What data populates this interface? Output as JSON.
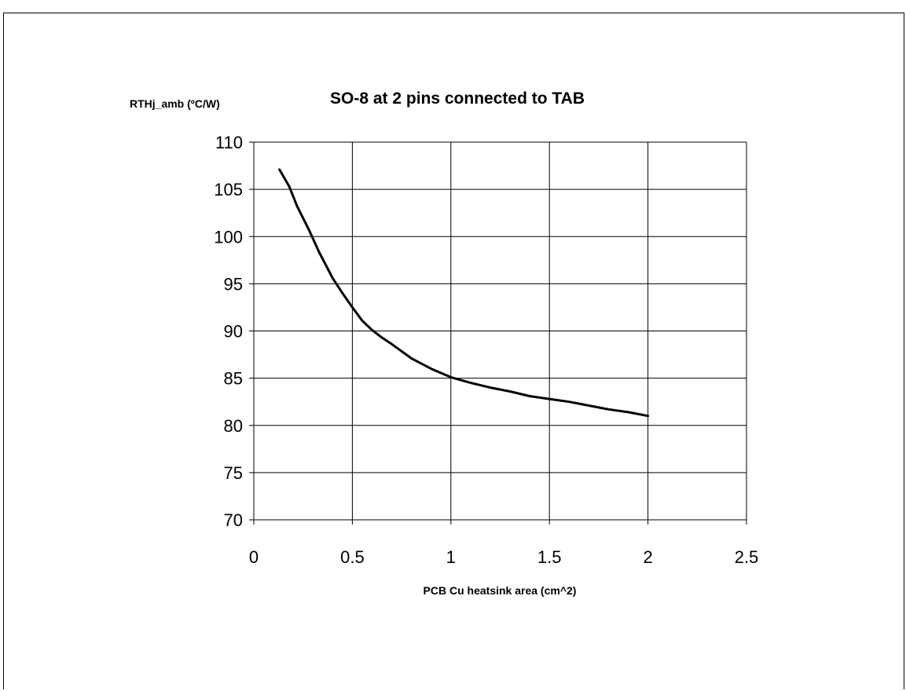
{
  "chart_data": {
    "type": "line",
    "title": "SO-8 at 2 pins connected to TAB",
    "xlabel": "PCB Cu heatsink area (cm^2)",
    "ylabel": "RTHj_amb (ºC/W)",
    "xlim": [
      0,
      2.5
    ],
    "ylim": [
      70,
      110
    ],
    "xticks": [
      0,
      0.5,
      1,
      1.5,
      2,
      2.5
    ],
    "yticks": [
      70,
      75,
      80,
      85,
      90,
      95,
      100,
      105,
      110
    ],
    "grid": true,
    "legend": "none",
    "series": [
      {
        "color": "#000000",
        "x": [
          0.13,
          0.18,
          0.22,
          0.28,
          0.33,
          0.4,
          0.45,
          0.5,
          0.55,
          0.6,
          0.65,
          0.7,
          0.8,
          0.9,
          1.0,
          1.1,
          1.2,
          1.3,
          1.4,
          1.5,
          1.6,
          1.7,
          1.8,
          1.9,
          2.0
        ],
        "y": [
          107.1,
          105.3,
          103.2,
          100.7,
          98.4,
          95.6,
          94.0,
          92.5,
          91.1,
          90.1,
          89.3,
          88.6,
          87.1,
          86.0,
          85.1,
          84.5,
          84.0,
          83.6,
          83.1,
          82.8,
          82.5,
          82.1,
          81.7,
          81.4,
          81.0
        ]
      }
    ]
  }
}
